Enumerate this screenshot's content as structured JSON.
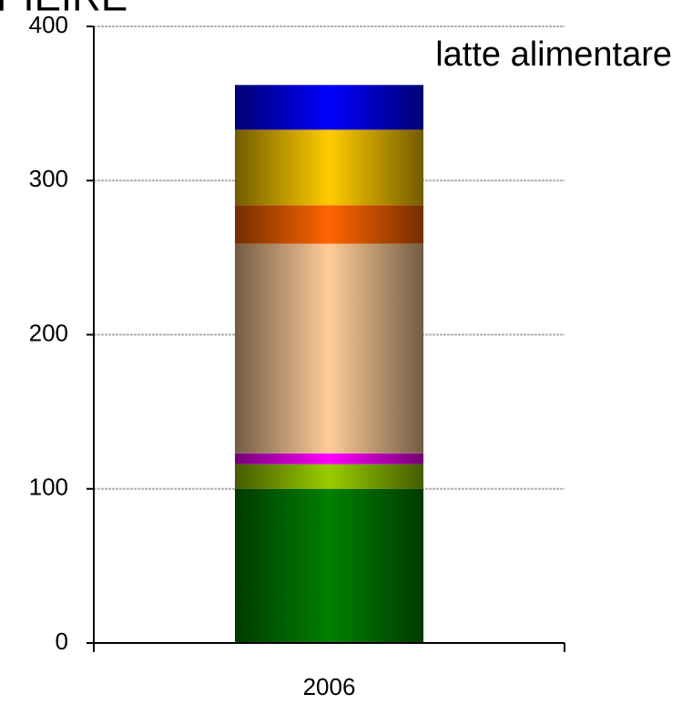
{
  "chart_data": {
    "type": "stacked_bar",
    "title": "PIEIRE",
    "annotation": "latte alimentare",
    "categories": [
      "2006"
    ],
    "series": [
      {
        "color": "#008000",
        "values": [
          100
        ]
      },
      {
        "color": "#99cc00",
        "values": [
          16
        ]
      },
      {
        "color": "#ff00ff",
        "values": [
          7
        ]
      },
      {
        "color": "#ffcc99",
        "values": [
          136
        ]
      },
      {
        "color": "#ff6600",
        "values": [
          25
        ]
      },
      {
        "color": "#ffcc00",
        "values": [
          49
        ]
      },
      {
        "color": "#0000ff",
        "values": [
          29
        ]
      }
    ],
    "ylim": [
      0,
      400
    ],
    "yticks": [
      0,
      100,
      200,
      300,
      400
    ],
    "grid": true
  }
}
